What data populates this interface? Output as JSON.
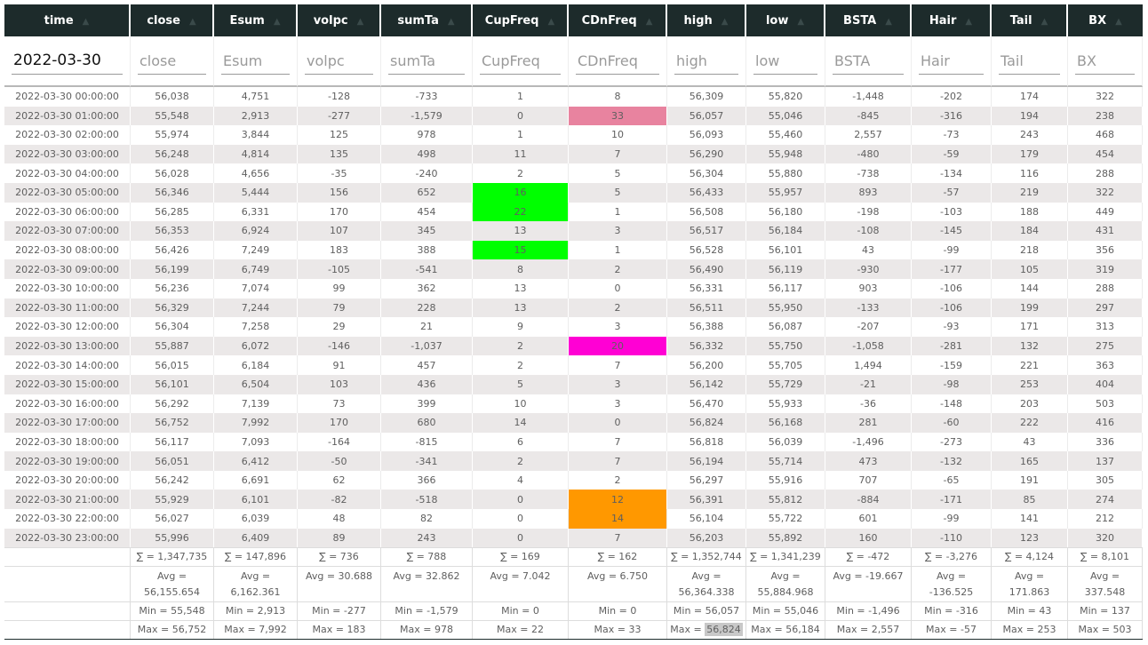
{
  "columns": [
    {
      "key": "time",
      "label": "time",
      "filter_value": "2022-03-30",
      "placeholder": "time"
    },
    {
      "key": "close",
      "label": "close",
      "filter_value": "",
      "placeholder": "close"
    },
    {
      "key": "Esum",
      "label": "Esum",
      "filter_value": "",
      "placeholder": "Esum"
    },
    {
      "key": "volpc",
      "label": "volpc",
      "filter_value": "",
      "placeholder": "volpc"
    },
    {
      "key": "sumTa",
      "label": "sumTa",
      "filter_value": "",
      "placeholder": "sumTa"
    },
    {
      "key": "CupFreq",
      "label": "CupFreq",
      "filter_value": "",
      "placeholder": "CupFreq"
    },
    {
      "key": "CDnFreq",
      "label": "CDnFreq",
      "filter_value": "",
      "placeholder": "CDnFreq"
    },
    {
      "key": "high",
      "label": "high",
      "filter_value": "",
      "placeholder": "high"
    },
    {
      "key": "low",
      "label": "low",
      "filter_value": "",
      "placeholder": "low"
    },
    {
      "key": "BSTA",
      "label": "BSTA",
      "filter_value": "",
      "placeholder": "BSTA"
    },
    {
      "key": "Hair",
      "label": "Hair",
      "filter_value": "",
      "placeholder": "Hair"
    },
    {
      "key": "Tail",
      "label": "Tail",
      "filter_value": "",
      "placeholder": "Tail"
    },
    {
      "key": "BX",
      "label": "BX",
      "filter_value": "",
      "placeholder": "BX"
    }
  ],
  "sort_icon": "sort-up-triangle-icon",
  "highlight_colors": {
    "pink": "#e8839f",
    "magenta": "#ff00d4",
    "green": "#00ff00",
    "orange": "#ff9800"
  },
  "rows": [
    {
      "cells": [
        "2022-03-30 00:00:00",
        "56,038",
        "4,751",
        "-128",
        "-733",
        "1",
        "8",
        "56,309",
        "55,820",
        "-1,448",
        "-202",
        "174",
        "322"
      ],
      "highlights": {}
    },
    {
      "cells": [
        "2022-03-30 01:00:00",
        "55,548",
        "2,913",
        "-277",
        "-1,579",
        "0",
        "33",
        "56,057",
        "55,046",
        "-845",
        "-316",
        "194",
        "238"
      ],
      "highlights": {
        "6": "pink"
      }
    },
    {
      "cells": [
        "2022-03-30 02:00:00",
        "55,974",
        "3,844",
        "125",
        "978",
        "1",
        "10",
        "56,093",
        "55,460",
        "2,557",
        "-73",
        "243",
        "468"
      ],
      "highlights": {}
    },
    {
      "cells": [
        "2022-03-30 03:00:00",
        "56,248",
        "4,814",
        "135",
        "498",
        "11",
        "7",
        "56,290",
        "55,948",
        "-480",
        "-59",
        "179",
        "454"
      ],
      "highlights": {}
    },
    {
      "cells": [
        "2022-03-30 04:00:00",
        "56,028",
        "4,656",
        "-35",
        "-240",
        "2",
        "5",
        "56,304",
        "55,880",
        "-738",
        "-134",
        "116",
        "288"
      ],
      "highlights": {}
    },
    {
      "cells": [
        "2022-03-30 05:00:00",
        "56,346",
        "5,444",
        "156",
        "652",
        "16",
        "5",
        "56,433",
        "55,957",
        "893",
        "-57",
        "219",
        "322"
      ],
      "highlights": {
        "5": "green"
      }
    },
    {
      "cells": [
        "2022-03-30 06:00:00",
        "56,285",
        "6,331",
        "170",
        "454",
        "22",
        "1",
        "56,508",
        "56,180",
        "-198",
        "-103",
        "188",
        "449"
      ],
      "highlights": {
        "5": "green"
      }
    },
    {
      "cells": [
        "2022-03-30 07:00:00",
        "56,353",
        "6,924",
        "107",
        "345",
        "13",
        "3",
        "56,517",
        "56,184",
        "-108",
        "-145",
        "184",
        "431"
      ],
      "highlights": {}
    },
    {
      "cells": [
        "2022-03-30 08:00:00",
        "56,426",
        "7,249",
        "183",
        "388",
        "15",
        "1",
        "56,528",
        "56,101",
        "43",
        "-99",
        "218",
        "356"
      ],
      "highlights": {
        "5": "green"
      }
    },
    {
      "cells": [
        "2022-03-30 09:00:00",
        "56,199",
        "6,749",
        "-105",
        "-541",
        "8",
        "2",
        "56,490",
        "56,119",
        "-930",
        "-177",
        "105",
        "319"
      ],
      "highlights": {}
    },
    {
      "cells": [
        "2022-03-30 10:00:00",
        "56,236",
        "7,074",
        "99",
        "362",
        "13",
        "0",
        "56,331",
        "56,117",
        "903",
        "-106",
        "144",
        "288"
      ],
      "highlights": {}
    },
    {
      "cells": [
        "2022-03-30 11:00:00",
        "56,329",
        "7,244",
        "79",
        "228",
        "13",
        "2",
        "56,511",
        "55,950",
        "-133",
        "-106",
        "199",
        "297"
      ],
      "highlights": {}
    },
    {
      "cells": [
        "2022-03-30 12:00:00",
        "56,304",
        "7,258",
        "29",
        "21",
        "9",
        "3",
        "56,388",
        "56,087",
        "-207",
        "-93",
        "171",
        "313"
      ],
      "highlights": {}
    },
    {
      "cells": [
        "2022-03-30 13:00:00",
        "55,887",
        "6,072",
        "-146",
        "-1,037",
        "2",
        "20",
        "56,332",
        "55,750",
        "-1,058",
        "-281",
        "132",
        "275"
      ],
      "highlights": {
        "6": "magenta"
      }
    },
    {
      "cells": [
        "2022-03-30 14:00:00",
        "56,015",
        "6,184",
        "91",
        "457",
        "2",
        "7",
        "56,200",
        "55,705",
        "1,494",
        "-159",
        "221",
        "363"
      ],
      "highlights": {}
    },
    {
      "cells": [
        "2022-03-30 15:00:00",
        "56,101",
        "6,504",
        "103",
        "436",
        "5",
        "3",
        "56,142",
        "55,729",
        "-21",
        "-98",
        "253",
        "404"
      ],
      "highlights": {}
    },
    {
      "cells": [
        "2022-03-30 16:00:00",
        "56,292",
        "7,139",
        "73",
        "399",
        "10",
        "3",
        "56,470",
        "55,933",
        "-36",
        "-148",
        "203",
        "503"
      ],
      "highlights": {}
    },
    {
      "cells": [
        "2022-03-30 17:00:00",
        "56,752",
        "7,992",
        "170",
        "680",
        "14",
        "0",
        "56,824",
        "56,168",
        "281",
        "-60",
        "222",
        "416"
      ],
      "highlights": {}
    },
    {
      "cells": [
        "2022-03-30 18:00:00",
        "56,117",
        "7,093",
        "-164",
        "-815",
        "6",
        "7",
        "56,818",
        "56,039",
        "-1,496",
        "-273",
        "43",
        "336"
      ],
      "highlights": {}
    },
    {
      "cells": [
        "2022-03-30 19:00:00",
        "56,051",
        "6,412",
        "-50",
        "-341",
        "2",
        "7",
        "56,194",
        "55,714",
        "473",
        "-132",
        "165",
        "137"
      ],
      "highlights": {}
    },
    {
      "cells": [
        "2022-03-30 20:00:00",
        "56,242",
        "6,691",
        "62",
        "366",
        "4",
        "2",
        "56,297",
        "55,916",
        "707",
        "-65",
        "191",
        "305"
      ],
      "highlights": {}
    },
    {
      "cells": [
        "2022-03-30 21:00:00",
        "55,929",
        "6,101",
        "-82",
        "-518",
        "0",
        "12",
        "56,391",
        "55,812",
        "-884",
        "-171",
        "85",
        "274"
      ],
      "highlights": {
        "6": "orange"
      }
    },
    {
      "cells": [
        "2022-03-30 22:00:00",
        "56,027",
        "6,039",
        "48",
        "82",
        "0",
        "14",
        "56,104",
        "55,722",
        "601",
        "-99",
        "141",
        "212"
      ],
      "highlights": {
        "6": "orange"
      }
    },
    {
      "cells": [
        "2022-03-30 23:00:00",
        "55,996",
        "6,409",
        "89",
        "243",
        "0",
        "7",
        "56,203",
        "55,892",
        "160",
        "-110",
        "123",
        "320"
      ],
      "highlights": {}
    }
  ],
  "footer": {
    "sum": [
      "",
      "∑ = 1,347,735",
      "∑ = 147,896",
      "∑ = 736",
      "∑ = 788",
      "∑ = 169",
      "∑ = 162",
      "∑ = 1,352,744",
      "∑ = 1,341,239",
      "∑ = -472",
      "∑ = -3,276",
      "∑ = 4,124",
      "∑ = 8,101"
    ],
    "avg": [
      "",
      "Avg = 56,155.654",
      "Avg = 6,162.361",
      "Avg = 30.688",
      "Avg = 32.862",
      "Avg = 7.042",
      "Avg = 6.750",
      "Avg = 56,364.338",
      "Avg = 55,884.968",
      "Avg = -19.667",
      "Avg = -136.525",
      "Avg = 171.863",
      "Avg = 337.548"
    ],
    "min": [
      "",
      "Min = 55,548",
      "Min = 2,913",
      "Min = -277",
      "Min = -1,579",
      "Min = 0",
      "Min = 0",
      "Min = 56,057",
      "Min = 55,046",
      "Min = -1,496",
      "Min = -316",
      "Min = 43",
      "Min = 137"
    ],
    "max_prefix": [
      "",
      "Max = ",
      "Max = ",
      "Max = ",
      "Max = ",
      "Max = ",
      "Max = ",
      "Max = ",
      "Max = ",
      "Max = ",
      "Max = ",
      "Max = ",
      "Max = "
    ],
    "max_value": [
      "",
      "56,752",
      "7,992",
      "183",
      "978",
      "22",
      "33",
      "56,824",
      "56,184",
      "2,557",
      "-57",
      "253",
      "503"
    ],
    "max_highlight_col": 7
  }
}
